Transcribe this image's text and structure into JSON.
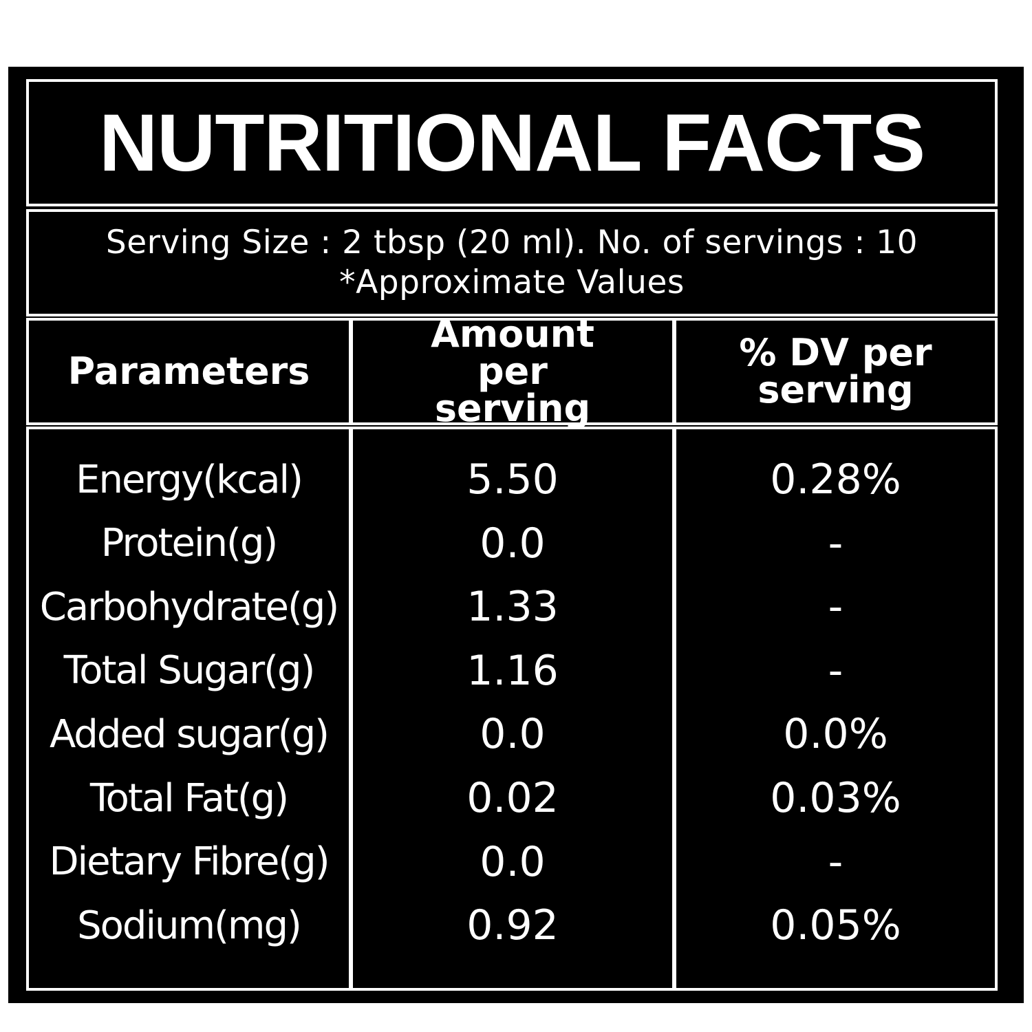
{
  "title": "NUTRITIONAL FACTS",
  "serving_line": "Serving Size : 2 tbsp (20 ml). No. of servings : 10",
  "note": "*Approximate Values",
  "headers": [
    "Parameters",
    "Amount per serving",
    "% DV per serving"
  ],
  "rows": [
    {
      "param": "Energy(kcal)",
      "amount": "5.50",
      "dv": "0.28%"
    },
    {
      "param": "Protein(g)",
      "amount": "0.0",
      "dv": "-"
    },
    {
      "param": "Carbohydrate(g)",
      "amount": "1.33",
      "dv": "-"
    },
    {
      "param": "Total Sugar(g)",
      "amount": "1.16",
      "dv": "-"
    },
    {
      "param": "Added sugar(g)",
      "amount": "0.0",
      "dv": "0.0%"
    },
    {
      "param": "Total Fat(g)",
      "amount": "0.02",
      "dv": "0.03%"
    },
    {
      "param": "Dietary Fibre(g)",
      "amount": "0.0",
      "dv": "-"
    },
    {
      "param": "Sodium(mg)",
      "amount": "0.92",
      "dv": "0.05%"
    }
  ]
}
